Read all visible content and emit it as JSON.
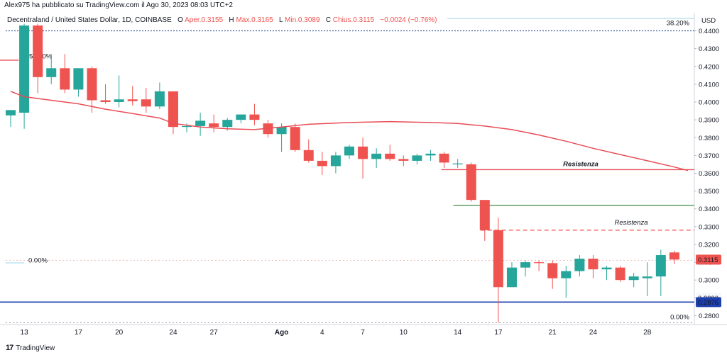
{
  "header": {
    "caption": "Alex975 ha pubblicato su TradingView.com il Ago 30, 2023 08:03 UTC+2",
    "symbol": "Decentraland / United States Dollar, 1D, COINBASE",
    "o_label": "O",
    "o_value": "Aper.0.3155",
    "h_label": "H",
    "h_value": "Max.0.3165",
    "l_label": "L",
    "l_value": "Min.0.3089",
    "c_label": "C",
    "c_value": "Chius.0.3115",
    "change": "−0.0024 (−0.76%)"
  },
  "footer": {
    "logo": "17",
    "brand": "TradingView"
  },
  "colors": {
    "up": "#26a69a",
    "down": "#ef5350",
    "ma": "#e84d55",
    "support": "#1e40af",
    "green_line": "#2e7d32",
    "price_tag": "#ef5350",
    "support_tag": "#1e40af"
  },
  "chart_data": {
    "type": "candlestick",
    "currency": "USD",
    "ylim": [
      0.275,
      0.443
    ],
    "y_ticks": [
      "0.4400",
      "0.4300",
      "0.4200",
      "0.4100",
      "0.4000",
      "0.3900",
      "0.3800",
      "0.3700",
      "0.3600",
      "0.3500",
      "0.3400",
      "0.3300",
      "0.3200",
      "0.3100",
      "0.3000",
      "0.2900",
      "0.2800"
    ],
    "x_labels": [
      {
        "label": "13",
        "index": 1
      },
      {
        "label": "17",
        "index": 5
      },
      {
        "label": "20",
        "index": 8
      },
      {
        "label": "24",
        "index": 12
      },
      {
        "label": "27",
        "index": 15
      },
      {
        "label": "Ago",
        "index": 20
      },
      {
        "label": "4",
        "index": 23
      },
      {
        "label": "7",
        "index": 26
      },
      {
        "label": "10",
        "index": 29
      },
      {
        "label": "14",
        "index": 33
      },
      {
        "label": "17",
        "index": 36
      },
      {
        "label": "21",
        "index": 40
      },
      {
        "label": "24",
        "index": 43
      },
      {
        "label": "28",
        "index": 47
      }
    ],
    "candles": [
      {
        "o": 0.3925,
        "h": 0.3955,
        "l": 0.386,
        "c": 0.3955
      },
      {
        "o": 0.394,
        "h": 0.444,
        "l": 0.385,
        "c": 0.443
      },
      {
        "o": 0.443,
        "h": 0.444,
        "l": 0.405,
        "c": 0.414
      },
      {
        "o": 0.414,
        "h": 0.427,
        "l": 0.41,
        "c": 0.419
      },
      {
        "o": 0.419,
        "h": 0.427,
        "l": 0.405,
        "c": 0.407
      },
      {
        "o": 0.407,
        "h": 0.419,
        "l": 0.403,
        "c": 0.419
      },
      {
        "o": 0.419,
        "h": 0.42,
        "l": 0.394,
        "c": 0.401
      },
      {
        "o": 0.401,
        "h": 0.41,
        "l": 0.399,
        "c": 0.4
      },
      {
        "o": 0.4,
        "h": 0.415,
        "l": 0.397,
        "c": 0.4015
      },
      {
        "o": 0.4015,
        "h": 0.409,
        "l": 0.398,
        "c": 0.4005
      },
      {
        "o": 0.4015,
        "h": 0.408,
        "l": 0.394,
        "c": 0.3975
      },
      {
        "o": 0.3975,
        "h": 0.411,
        "l": 0.396,
        "c": 0.406
      },
      {
        "o": 0.406,
        "h": 0.406,
        "l": 0.382,
        "c": 0.386
      },
      {
        "o": 0.386,
        "h": 0.388,
        "l": 0.383,
        "c": 0.3865
      },
      {
        "o": 0.3865,
        "h": 0.394,
        "l": 0.381,
        "c": 0.3895
      },
      {
        "o": 0.388,
        "h": 0.393,
        "l": 0.383,
        "c": 0.386
      },
      {
        "o": 0.386,
        "h": 0.391,
        "l": 0.384,
        "c": 0.39
      },
      {
        "o": 0.39,
        "h": 0.393,
        "l": 0.388,
        "c": 0.393
      },
      {
        "o": 0.393,
        "h": 0.399,
        "l": 0.387,
        "c": 0.39
      },
      {
        "o": 0.388,
        "h": 0.39,
        "l": 0.38,
        "c": 0.382
      },
      {
        "o": 0.382,
        "h": 0.388,
        "l": 0.372,
        "c": 0.386
      },
      {
        "o": 0.386,
        "h": 0.388,
        "l": 0.372,
        "c": 0.373
      },
      {
        "o": 0.373,
        "h": 0.379,
        "l": 0.366,
        "c": 0.367
      },
      {
        "o": 0.367,
        "h": 0.372,
        "l": 0.359,
        "c": 0.364
      },
      {
        "o": 0.364,
        "h": 0.372,
        "l": 0.36,
        "c": 0.37
      },
      {
        "o": 0.37,
        "h": 0.376,
        "l": 0.368,
        "c": 0.375
      },
      {
        "o": 0.375,
        "h": 0.38,
        "l": 0.357,
        "c": 0.368
      },
      {
        "o": 0.368,
        "h": 0.374,
        "l": 0.363,
        "c": 0.371
      },
      {
        "o": 0.371,
        "h": 0.376,
        "l": 0.367,
        "c": 0.368
      },
      {
        "o": 0.368,
        "h": 0.37,
        "l": 0.364,
        "c": 0.367
      },
      {
        "o": 0.367,
        "h": 0.371,
        "l": 0.365,
        "c": 0.37
      },
      {
        "o": 0.37,
        "h": 0.373,
        "l": 0.367,
        "c": 0.371
      },
      {
        "o": 0.371,
        "h": 0.372,
        "l": 0.363,
        "c": 0.366
      },
      {
        "o": 0.365,
        "h": 0.368,
        "l": 0.363,
        "c": 0.3655
      },
      {
        "o": 0.365,
        "h": 0.366,
        "l": 0.344,
        "c": 0.345
      },
      {
        "o": 0.345,
        "h": 0.345,
        "l": 0.322,
        "c": 0.328
      },
      {
        "o": 0.328,
        "h": 0.335,
        "l": 0.276,
        "c": 0.296
      },
      {
        "o": 0.296,
        "h": 0.31,
        "l": 0.296,
        "c": 0.307
      },
      {
        "o": 0.307,
        "h": 0.311,
        "l": 0.302,
        "c": 0.31
      },
      {
        "o": 0.31,
        "h": 0.311,
        "l": 0.305,
        "c": 0.3095
      },
      {
        "o": 0.3095,
        "h": 0.311,
        "l": 0.295,
        "c": 0.301
      },
      {
        "o": 0.301,
        "h": 0.308,
        "l": 0.29,
        "c": 0.305
      },
      {
        "o": 0.305,
        "h": 0.314,
        "l": 0.302,
        "c": 0.312
      },
      {
        "o": 0.312,
        "h": 0.314,
        "l": 0.301,
        "c": 0.306
      },
      {
        "o": 0.306,
        "h": 0.308,
        "l": 0.3,
        "c": 0.307
      },
      {
        "o": 0.307,
        "h": 0.308,
        "l": 0.299,
        "c": 0.3
      },
      {
        "o": 0.3,
        "h": 0.304,
        "l": 0.296,
        "c": 0.302
      },
      {
        "o": 0.301,
        "h": 0.31,
        "l": 0.291,
        "c": 0.302
      },
      {
        "o": 0.302,
        "h": 0.317,
        "l": 0.291,
        "c": 0.314
      },
      {
        "o": 0.3155,
        "h": 0.3165,
        "l": 0.3089,
        "c": 0.3115
      }
    ],
    "moving_average": [
      [
        0,
        0.406
      ],
      [
        1,
        0.403
      ],
      [
        3,
        0.401
      ],
      [
        5,
        0.399
      ],
      [
        7,
        0.396
      ],
      [
        9,
        0.3935
      ],
      [
        11,
        0.391
      ],
      [
        12,
        0.388
      ],
      [
        14,
        0.386
      ],
      [
        16,
        0.385
      ],
      [
        18,
        0.3845
      ],
      [
        20,
        0.386
      ],
      [
        22,
        0.3875
      ],
      [
        25,
        0.3885
      ],
      [
        28,
        0.389
      ],
      [
        31,
        0.3885
      ],
      [
        33,
        0.388
      ],
      [
        35,
        0.3865
      ],
      [
        37,
        0.3845
      ],
      [
        39,
        0.3815
      ],
      [
        41,
        0.378
      ],
      [
        43,
        0.374
      ],
      [
        45,
        0.3705
      ],
      [
        47,
        0.367
      ],
      [
        49,
        0.3635
      ],
      [
        50,
        0.3615
      ]
    ],
    "ma_extension_left": [
      [
        -1,
        0.4235
      ],
      [
        0.6,
        0.4235
      ]
    ],
    "resistance_solid": {
      "value": 0.362,
      "from_index": 32,
      "to_index": 51,
      "label": "Resistenza"
    },
    "resistance_dashed": {
      "value": 0.328,
      "from_index": 35,
      "to_index": 51,
      "label": "Resistenza"
    },
    "green_level": {
      "value": 0.342,
      "from_index": 33,
      "to_index": 51
    },
    "support_level": {
      "value": 0.2876,
      "label": "0.2876"
    },
    "fib_top": {
      "value": 0.44,
      "label": "38.20%",
      "top_line": 0.447
    },
    "fib_bottom": {
      "value": 0.276,
      "label": "0.00%"
    },
    "fib_mid_label": "0.00%",
    "fib_mid": 0.311,
    "fib_left_label": "50.00%",
    "price_tag": "0.3115",
    "partial_tag": "0.2900"
  }
}
